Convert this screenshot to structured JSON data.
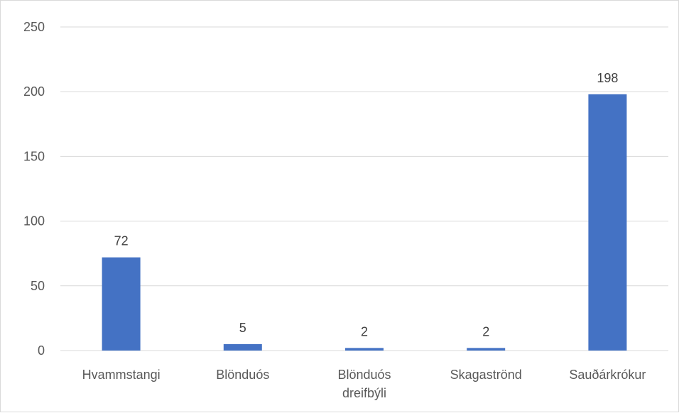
{
  "chart_data": {
    "type": "bar",
    "categories": [
      [
        "Hvammstangi"
      ],
      [
        "Blönduós"
      ],
      [
        "Blönduós",
        "dreifbýli"
      ],
      [
        "Skagaströnd"
      ],
      [
        "Sauðárkrókur"
      ]
    ],
    "values": [
      72,
      5,
      2,
      2,
      198
    ],
    "data_labels": [
      "72",
      "5",
      "2",
      "2",
      "198"
    ],
    "title": "",
    "xlabel": "",
    "ylabel": "",
    "ylim": [
      0,
      250
    ],
    "yticks": [
      "0",
      "50",
      "100",
      "150",
      "200",
      "250"
    ],
    "grid": true,
    "legend": "none",
    "bar_color": "#4472c4",
    "grid_color": "#d9d9d9",
    "text_color": "#595959"
  }
}
